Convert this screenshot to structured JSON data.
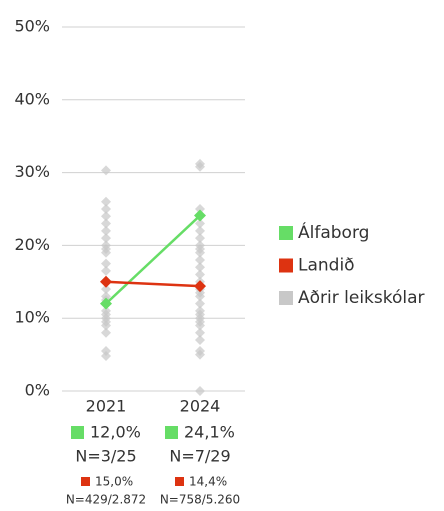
{
  "chart_data": {
    "type": "line",
    "categories": [
      "2021",
      "2024"
    ],
    "ylim": [
      0,
      50
    ],
    "yticks": [
      {
        "value": 0,
        "label": "0%"
      },
      {
        "value": 10,
        "label": "10%"
      },
      {
        "value": 20,
        "label": "20%"
      },
      {
        "value": 30,
        "label": "30%"
      },
      {
        "value": 40,
        "label": "40%"
      },
      {
        "value": 50,
        "label": "50%"
      }
    ],
    "grid": true,
    "legend": "right",
    "series": [
      {
        "name": "Álfaborg",
        "color": "#66dd66",
        "values": [
          12.0,
          24.1
        ],
        "value_labels": [
          "12,0%",
          "24,1%"
        ],
        "n_labels": [
          "N=3/25",
          "N=7/29"
        ]
      },
      {
        "name": "Landið",
        "color": "#dd3311",
        "values": [
          15.0,
          14.4
        ],
        "value_labels": [
          "15,0%",
          "14,4%"
        ],
        "n_labels": [
          "N=429/2.872",
          "N=758/5.260"
        ]
      },
      {
        "name": "Aðrir leikskólar",
        "color": "#c8c8c8",
        "type": "scatter",
        "values": [
          [
            30.3,
            26,
            25,
            24,
            23,
            22,
            21,
            20,
            19.5,
            19,
            17.5,
            16.5,
            15,
            14,
            13,
            12.5,
            11,
            10.5,
            10,
            9.5,
            9,
            8,
            5.5,
            4.8
          ],
          [
            31.2,
            30.8,
            25,
            24,
            23,
            22,
            21,
            20,
            19.5,
            19,
            18,
            17,
            16,
            15,
            14,
            13.5,
            13,
            12,
            11,
            10.5,
            10,
            9.5,
            9,
            8,
            7,
            5.5,
            5,
            0
          ]
        ]
      }
    ]
  }
}
